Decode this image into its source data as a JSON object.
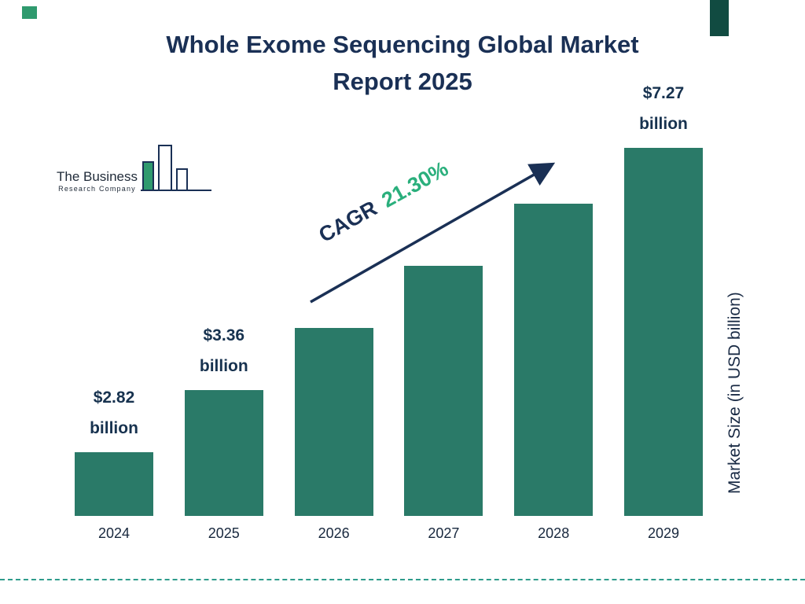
{
  "page": {
    "title_line1": "Whole Exome Sequencing Global Market",
    "title_line2": "Report 2025"
  },
  "logo": {
    "line1": "The Business",
    "line2": "Research Company"
  },
  "annotation": {
    "cagr_label": "CAGR",
    "cagr_value": "21.30%"
  },
  "ylabel": "Market Size (in USD billion)",
  "colors": {
    "bar_teal": "#2a7a68",
    "navy": "#1a3055",
    "accent_green": "#2aaf7c",
    "dashed_line": "#2f9c8c",
    "corner_left_green": "#2f9a6e",
    "corner_right_teal": "#114b41"
  },
  "chart_data": {
    "type": "bar",
    "title": "Whole Exome Sequencing Global Market Report 2025",
    "categories": [
      "2024",
      "2025",
      "2026",
      "2027",
      "2028",
      "2029"
    ],
    "values": [
      2.82,
      3.36,
      4.15,
      5.03,
      6.1,
      7.27
    ],
    "value_unit": "USD billion",
    "labeled_values": {
      "2024": "$2.82 billion",
      "2025": "$3.36 billion",
      "2029": "$7.27 billion"
    },
    "xlabel": "",
    "ylabel": "Market Size (in USD billion)",
    "ylim": [
      0,
      8
    ],
    "grid": false,
    "legend": "none",
    "bar_color": "#2a7a68",
    "annotation": {
      "label": "CAGR",
      "value": "21.30%"
    }
  }
}
